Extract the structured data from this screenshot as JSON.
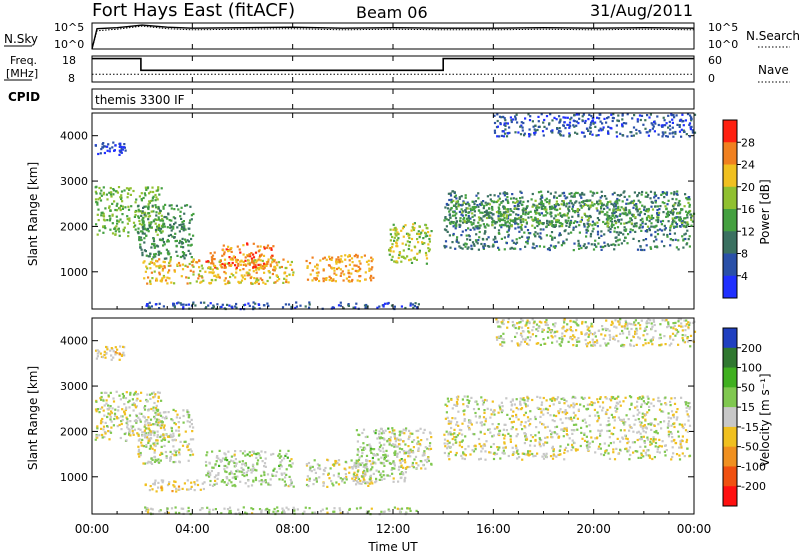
{
  "header": {
    "station": "Fort Hays East (fitACF)",
    "beam": "Beam 06",
    "date": "31/Aug/2011"
  },
  "noise_panel": {
    "left_label": "N.Sky",
    "left_ticks": [
      "10^5",
      "10^0"
    ],
    "right_ticks": [
      "10^5",
      "10^0"
    ],
    "right_label": "N.Search"
  },
  "freq_panel": {
    "left_label_1": "Freq.",
    "left_label_2": "[MHz]",
    "left_ticks": [
      "18",
      "8"
    ],
    "right_ticks": [
      "60",
      "0"
    ],
    "right_label": "Nave"
  },
  "cpid_panel": {
    "left_label": "CPID",
    "program": "themis 3300 IF"
  },
  "x_axis": {
    "ticks": [
      "00:00",
      "04:00",
      "08:00",
      "12:00",
      "16:00",
      "20:00",
      "00:00"
    ],
    "label": "Time UT"
  },
  "power_panel": {
    "ylabel": "Slant Range [km]",
    "y_ticks": [
      "4000",
      "3000",
      "2000",
      "1000"
    ],
    "colorbar_label": "Power [dB]",
    "colorbar_ticks": [
      "28",
      "24",
      "20",
      "16",
      "12",
      "8",
      "4"
    ]
  },
  "velocity_panel": {
    "ylabel": "Slant Range [km]",
    "y_ticks": [
      "4000",
      "3000",
      "2000",
      "1000"
    ],
    "colorbar_label": "Velocity [m s⁻¹]",
    "colorbar_ticks": [
      "200",
      "100",
      "50",
      "15",
      "-15",
      "-50",
      "-100",
      "-200"
    ]
  },
  "colors": {
    "power_scale": [
      "#2030ff",
      "#2a50a8",
      "#3a7060",
      "#44a040",
      "#90c030",
      "#f0c020",
      "#f08020",
      "#ff2010"
    ],
    "velocity_scale": [
      "#2040c0",
      "#307830",
      "#40b020",
      "#80c850",
      "#c8c8c8",
      "#f0c020",
      "#f09020",
      "#f05010",
      "#ff1010"
    ]
  },
  "chart_data": [
    {
      "type": "line",
      "title": "N.Sky / N.Search",
      "x": [
        0,
        0.2,
        1,
        2,
        3,
        4,
        6,
        8,
        10,
        12,
        14,
        16,
        18,
        20,
        22,
        24
      ],
      "series": [
        {
          "name": "N.Sky",
          "values": [
            0,
            3.9,
            4.1,
            4.6,
            4.2,
            4.0,
            4.1,
            4.2,
            4.0,
            4.1,
            4.0,
            4.0,
            4.1,
            4.0,
            4.1,
            4.0
          ]
        },
        {
          "name": "N.Search",
          "values": [
            0,
            3.5,
            3.8,
            4.4,
            3.9,
            3.7,
            3.8,
            3.9,
            3.7,
            3.8,
            3.7,
            3.7,
            3.8,
            3.7,
            3.8,
            3.7
          ]
        }
      ],
      "ylim": [
        0,
        5
      ],
      "grid": false
    },
    {
      "type": "line",
      "title": "Freq. / Nave",
      "series": [
        {
          "name": "Freq. [MHz]",
          "x": [
            0,
            1.95,
            1.95,
            14,
            14,
            24
          ],
          "values": [
            17,
            17,
            12.5,
            12.5,
            17,
            17
          ]
        },
        {
          "name": "Nave",
          "x": [
            0,
            24
          ],
          "values": [
            18,
            18
          ]
        }
      ],
      "ylim": [
        8,
        18
      ],
      "y2lim": [
        0,
        60
      ],
      "grid": false
    },
    {
      "type": "heatmap",
      "title": "Power [dB]",
      "xlim": [
        0,
        24
      ],
      "ylim": [
        180,
        4500
      ],
      "color_range": [
        0,
        32
      ],
      "regions": [
        {
          "t": [
            0.1,
            1.3
          ],
          "r": [
            3600,
            3900
          ],
          "v": 4
        },
        {
          "t": [
            0.1,
            2.8
          ],
          "r": [
            1800,
            2900
          ],
          "v": 16
        },
        {
          "t": [
            1.8,
            4.0
          ],
          "r": [
            1300,
            2500
          ],
          "v": 12
        },
        {
          "t": [
            2.0,
            8.0
          ],
          "r": [
            750,
            1300
          ],
          "v": 22
        },
        {
          "t": [
            4.5,
            7.2
          ],
          "r": [
            1100,
            1650
          ],
          "v": 26
        },
        {
          "t": [
            8.5,
            11.2
          ],
          "r": [
            800,
            1400
          ],
          "v": 24
        },
        {
          "t": [
            11.8,
            13.5
          ],
          "r": [
            1200,
            2100
          ],
          "v": 18
        },
        {
          "t": [
            14.0,
            23.8
          ],
          "r": [
            1500,
            2800
          ],
          "v": 10
        },
        {
          "t": [
            14.2,
            24.0
          ],
          "r": [
            2000,
            2600
          ],
          "v": 14
        },
        {
          "t": [
            16.0,
            24.0
          ],
          "r": [
            4000,
            4500
          ],
          "v": 6
        },
        {
          "t": [
            2.0,
            13.0
          ],
          "r": [
            200,
            350
          ],
          "v": 6
        }
      ]
    },
    {
      "type": "heatmap",
      "title": "Velocity [m s⁻¹]",
      "xlim": [
        0,
        24
      ],
      "ylim": [
        180,
        4500
      ],
      "color_range": [
        -250,
        250
      ],
      "regions": [
        {
          "t": [
            0.1,
            1.3
          ],
          "r": [
            3600,
            3900
          ],
          "v": -30
        },
        {
          "t": [
            0.1,
            2.8
          ],
          "r": [
            1800,
            2900
          ],
          "v": 0
        },
        {
          "t": [
            1.8,
            4.0
          ],
          "r": [
            1300,
            2500
          ],
          "v": 0
        },
        {
          "t": [
            2.0,
            4.5
          ],
          "r": [
            700,
            950
          ],
          "v": -40
        },
        {
          "t": [
            4.5,
            8.0
          ],
          "r": [
            800,
            1600
          ],
          "v": 30
        },
        {
          "t": [
            8.5,
            11.2
          ],
          "r": [
            800,
            1400
          ],
          "v": 0
        },
        {
          "t": [
            10.5,
            12.5
          ],
          "r": [
            900,
            2100
          ],
          "v": 30
        },
        {
          "t": [
            11.8,
            13.5
          ],
          "r": [
            1200,
            2100
          ],
          "v": 0
        },
        {
          "t": [
            14.0,
            23.8
          ],
          "r": [
            1400,
            2800
          ],
          "v": 0
        },
        {
          "t": [
            16.0,
            24.0
          ],
          "r": [
            3900,
            4500
          ],
          "v": 0
        },
        {
          "t": [
            2.0,
            13.0
          ],
          "r": [
            200,
            350
          ],
          "v": 20
        }
      ]
    }
  ]
}
